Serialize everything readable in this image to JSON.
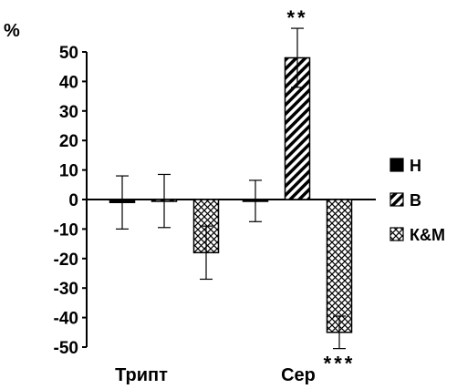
{
  "chart_data": {
    "type": "bar",
    "title": "",
    "ylabel": "%",
    "xlabel": "",
    "ylim": [
      -50,
      50
    ],
    "yticks": [
      50,
      40,
      30,
      20,
      10,
      0,
      -10,
      -20,
      -30,
      -40,
      -50
    ],
    "grid": false,
    "legend_position": "right",
    "categories": [
      "Трипт",
      "Сер"
    ],
    "series": [
      {
        "name": "Н",
        "pattern": "solid",
        "values": [
          -1,
          -0.5
        ],
        "errors": [
          9,
          7
        ]
      },
      {
        "name": "В",
        "pattern": "diagonal-hatch",
        "values": [
          -0.5,
          48
        ],
        "errors": [
          9,
          10
        ]
      },
      {
        "name": "К&М",
        "pattern": "crosshatch",
        "values": [
          -18,
          -45
        ],
        "errors": [
          9,
          5.5
        ]
      }
    ],
    "annotations": [
      {
        "category": "Сер",
        "series": "В",
        "text": "**"
      },
      {
        "category": "Сер",
        "series": "К&М",
        "text": "***"
      }
    ]
  }
}
